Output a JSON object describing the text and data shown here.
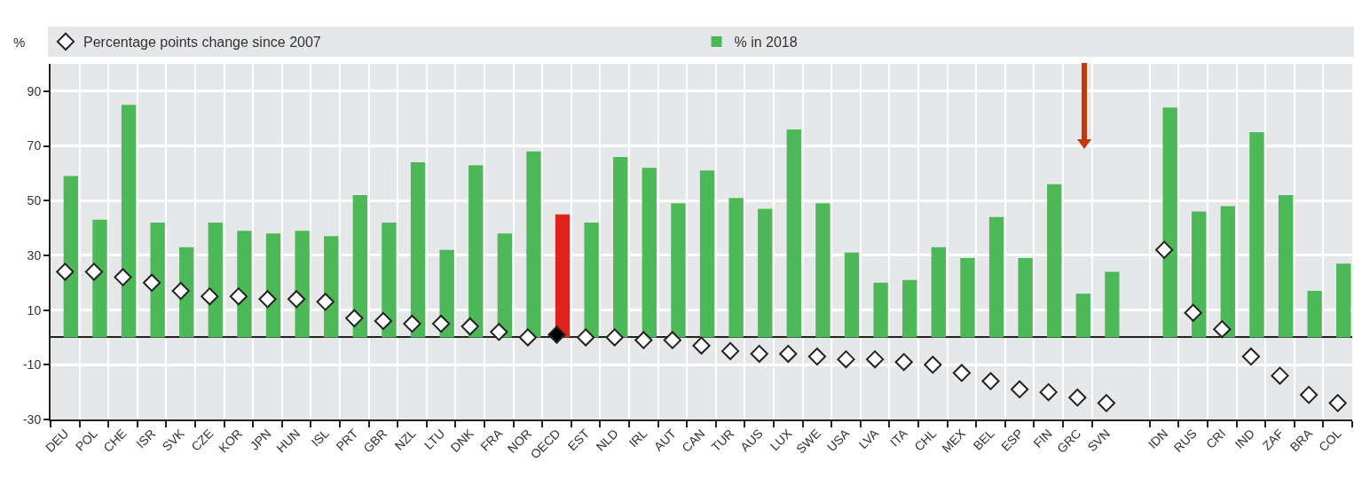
{
  "chart_data": {
    "type": "bar",
    "ylabel": "%",
    "categories": [
      "DEU",
      "POL",
      "CHE",
      "ISR",
      "SVK",
      "CZE",
      "KOR",
      "JPN",
      "HUN",
      "ISL",
      "PRT",
      "GBR",
      "NZL",
      "LTU",
      "DNK",
      "FRA",
      "NOR",
      "OECD",
      "EST",
      "NLD",
      "IRL",
      "AUT",
      "CAN",
      "TUR",
      "AUS",
      "LUX",
      "SWE",
      "USA",
      "LVA",
      "ITA",
      "CHL",
      "MEX",
      "BEL",
      "ESP",
      "FIN",
      "GRC",
      "SVN",
      null,
      "IDN",
      "RUS",
      "CRI",
      "IND",
      "ZAF",
      "BRA",
      "COL"
    ],
    "series": [
      {
        "name": "% in 2018",
        "color": "#4cb858",
        "colors": [
          "#4cb858",
          "#4cb858",
          "#4cb858",
          "#4cb858",
          "#4cb858",
          "#4cb858",
          "#4cb858",
          "#4cb858",
          "#4cb858",
          "#4cb858",
          "#4cb858",
          "#4cb858",
          "#4cb858",
          "#4cb858",
          "#4cb858",
          "#4cb858",
          "#4cb858",
          "#e2231a",
          "#4cb858",
          "#4cb858",
          "#4cb858",
          "#4cb858",
          "#4cb858",
          "#4cb858",
          "#4cb858",
          "#4cb858",
          "#4cb858",
          "#4cb858",
          "#4cb858",
          "#4cb858",
          "#4cb858",
          "#4cb858",
          "#4cb858",
          "#4cb858",
          "#4cb858",
          "#4cb858",
          "#4cb858",
          "#4cb858",
          "#4cb858",
          "#4cb858",
          "#4cb858",
          "#4cb858",
          "#4cb858",
          "#4cb858",
          "#4cb858"
        ],
        "values": [
          59,
          43,
          85,
          42,
          33,
          42,
          39,
          38,
          39,
          37,
          52,
          42,
          64,
          32,
          63,
          38,
          68,
          45,
          42,
          66,
          62,
          49,
          61,
          51,
          47,
          76,
          49,
          31,
          20,
          21,
          33,
          29,
          44,
          29,
          56,
          16,
          24,
          null,
          84,
          46,
          48,
          75,
          52,
          17,
          27
        ]
      },
      {
        "name": "Percentage points change since 2007",
        "type": "scatter",
        "marker": "diamond",
        "color": "#ffffff",
        "colors": [
          "#ffffff",
          "#ffffff",
          "#ffffff",
          "#ffffff",
          "#ffffff",
          "#ffffff",
          "#ffffff",
          "#ffffff",
          "#ffffff",
          "#ffffff",
          "#ffffff",
          "#ffffff",
          "#ffffff",
          "#ffffff",
          "#ffffff",
          "#ffffff",
          "#ffffff",
          "#000000",
          "#ffffff",
          "#ffffff",
          "#ffffff",
          "#ffffff",
          "#ffffff",
          "#ffffff",
          "#ffffff",
          "#ffffff",
          "#ffffff",
          "#ffffff",
          "#ffffff",
          "#ffffff",
          "#ffffff",
          "#ffffff",
          "#ffffff",
          "#ffffff",
          "#ffffff",
          "#ffffff",
          "#ffffff",
          "#ffffff",
          "#ffffff",
          "#ffffff",
          "#ffffff",
          "#ffffff",
          "#ffffff",
          "#ffffff",
          "#ffffff"
        ],
        "values": [
          24,
          24,
          22,
          20,
          17,
          15,
          15,
          14,
          14,
          13,
          7,
          6,
          5,
          5,
          4,
          2,
          0,
          1,
          0,
          0,
          -1,
          -1,
          -3,
          -5,
          -6,
          -6,
          -7,
          -8,
          -8,
          -9,
          -10,
          -13,
          -16,
          -19,
          -20,
          -22,
          -24,
          null,
          32,
          9,
          3,
          -7,
          -14,
          -21,
          -24
        ]
      }
    ],
    "ylim": [
      -30,
      100
    ],
    "yticks": [
      -30,
      -10,
      10,
      30,
      50,
      70,
      90
    ],
    "grid": true,
    "legend": "top"
  }
}
